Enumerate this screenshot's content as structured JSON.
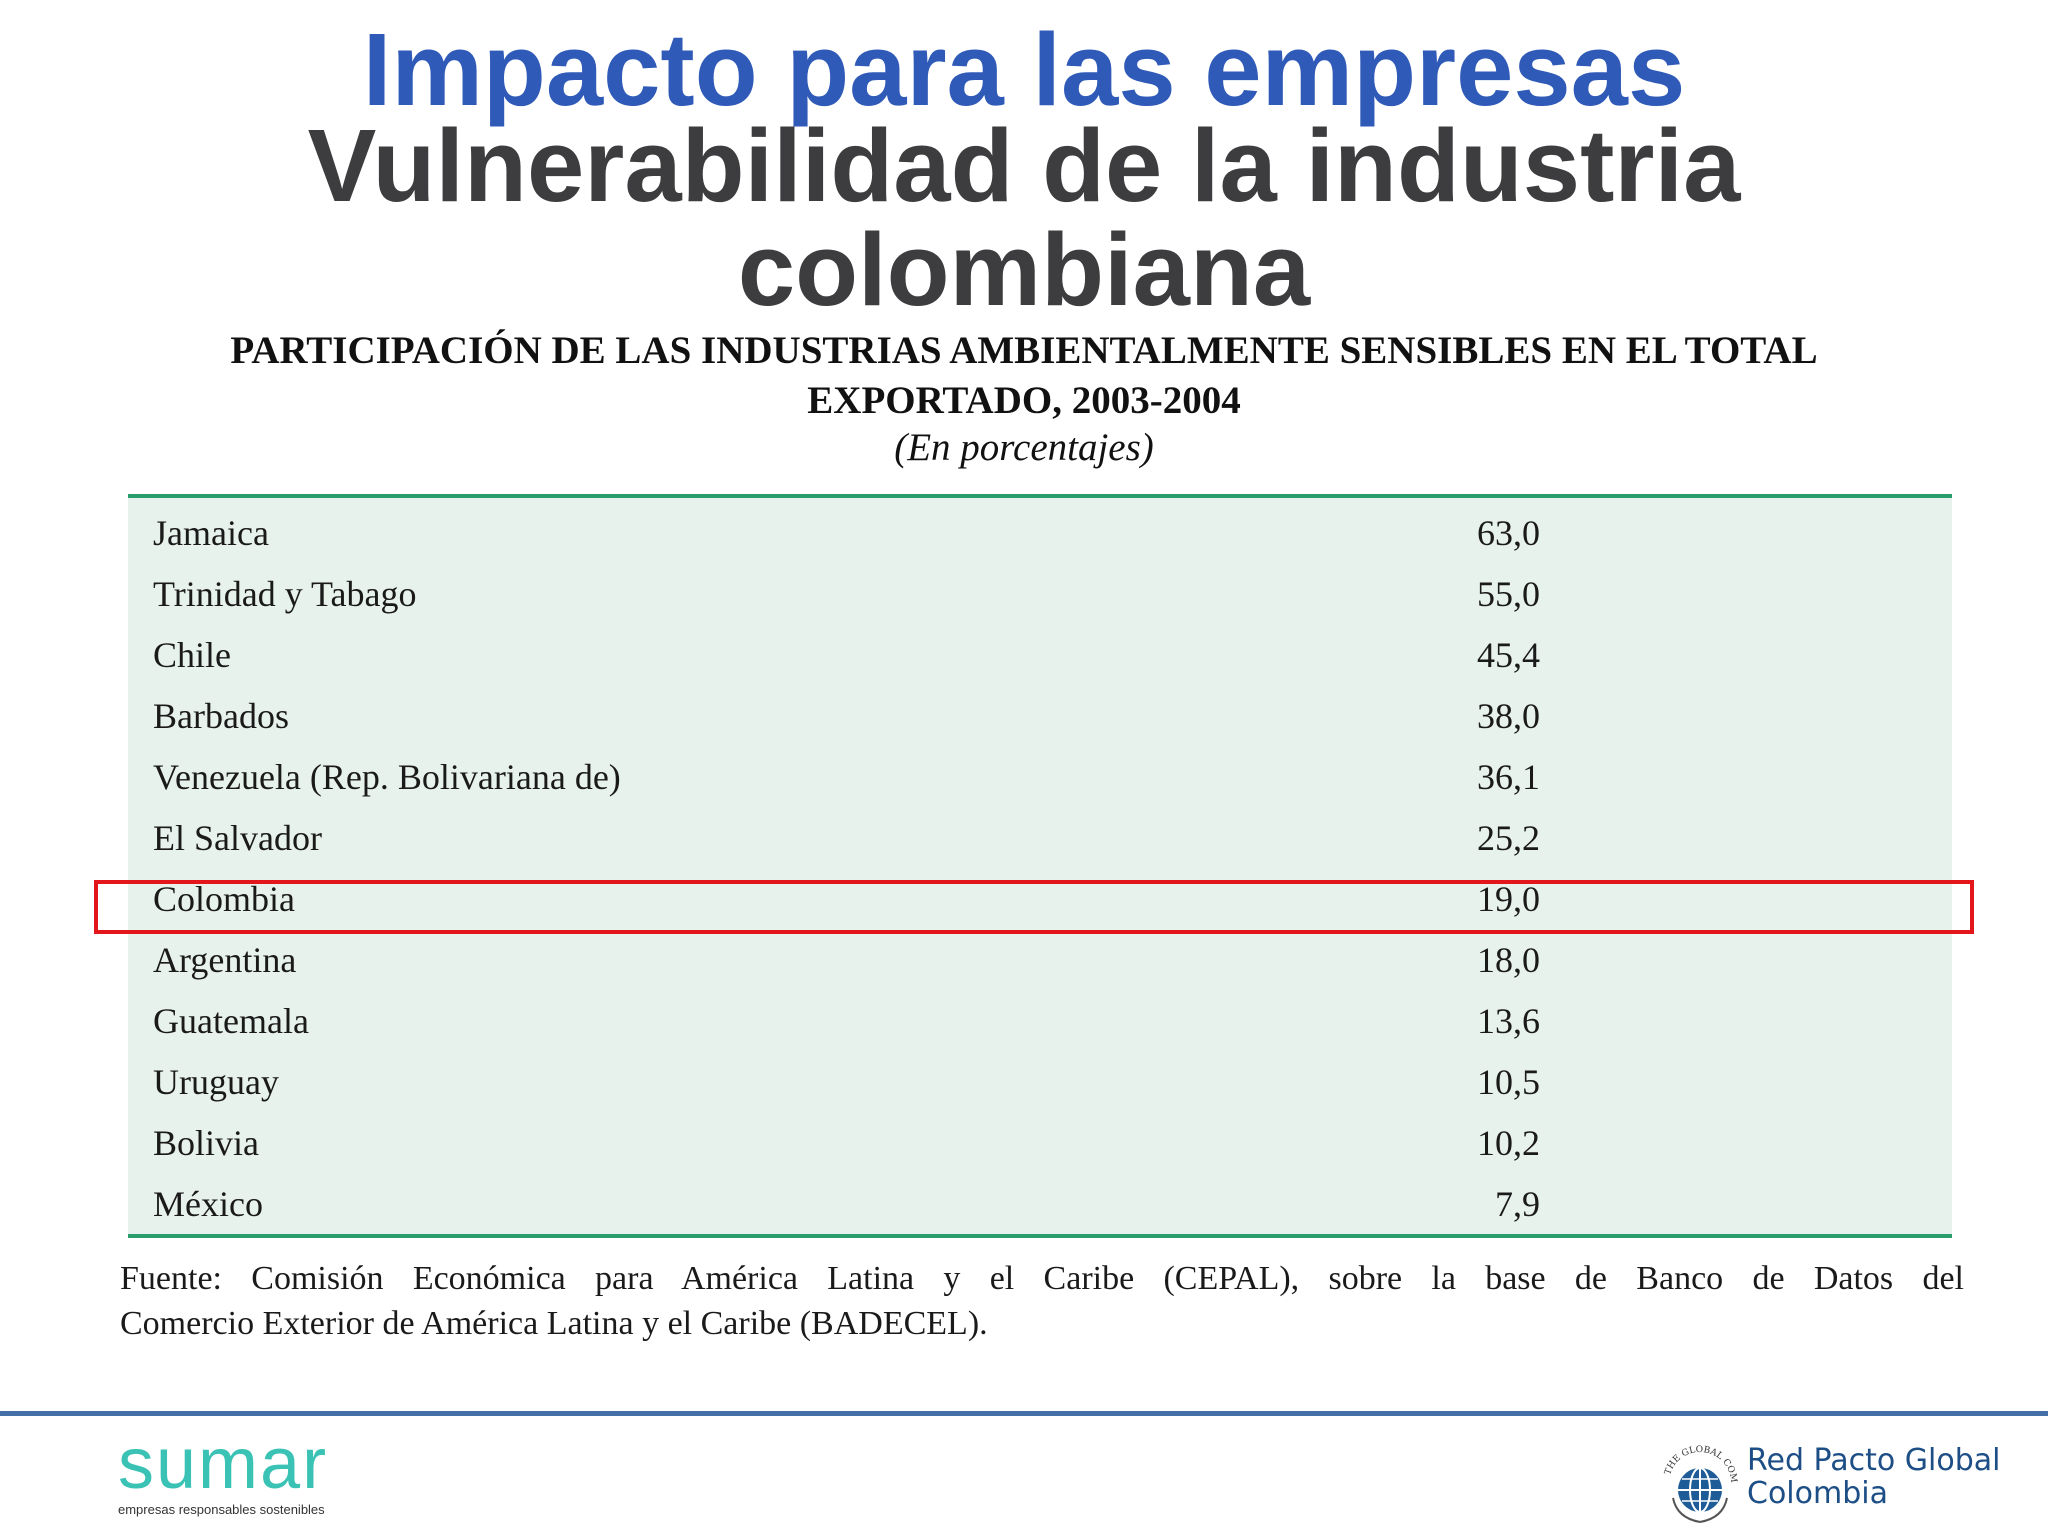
{
  "slide": {
    "title": "Impacto para las empresas",
    "subtitle_line1": "Vulnerabilidad de la industria",
    "subtitle_line2": "colombiana"
  },
  "chart_data": {
    "type": "table",
    "title_line1": "PARTICIPACIÓN DE LAS INDUSTRIAS AMBIENTALMENTE SENSIBLES EN EL TOTAL",
    "title_line2": "EXPORTADO, 2003-2004",
    "subtitle": "(En porcentajes)",
    "rows": [
      {
        "country": "Jamaica",
        "value": "63,0"
      },
      {
        "country": "Trinidad y Tabago",
        "value": "55,0"
      },
      {
        "country": "Chile",
        "value": "45,4"
      },
      {
        "country": "Barbados",
        "value": "38,0"
      },
      {
        "country": "Venezuela (Rep. Bolivariana de)",
        "value": "36,1"
      },
      {
        "country": "El Salvador",
        "value": "25,2"
      },
      {
        "country": "Colombia",
        "value": "19,0"
      },
      {
        "country": "Argentina",
        "value": "18,0"
      },
      {
        "country": "Guatemala",
        "value": "13,6"
      },
      {
        "country": "Uruguay",
        "value": "10,5"
      },
      {
        "country": "Bolivia",
        "value": "10,2"
      },
      {
        "country": "México",
        "value": "7,9"
      }
    ],
    "highlighted_row": "Colombia",
    "highlight_color": "#e3161b"
  },
  "source_line1": "Fuente: Comisión Económica para América Latina y el Caribe (CEPAL), sobre la base de Banco de Datos del",
  "source_line2": "Comercio Exterior de América Latina y el Caribe (BADECEL).",
  "footer": {
    "left_logo": {
      "word": "sumar",
      "tagline": "empresas responsables sostenibles"
    },
    "right_logo": {
      "line1": "Red Pacto Global",
      "line2": "Colombia",
      "seal_text": "THE GLOBAL COMPACT"
    }
  }
}
